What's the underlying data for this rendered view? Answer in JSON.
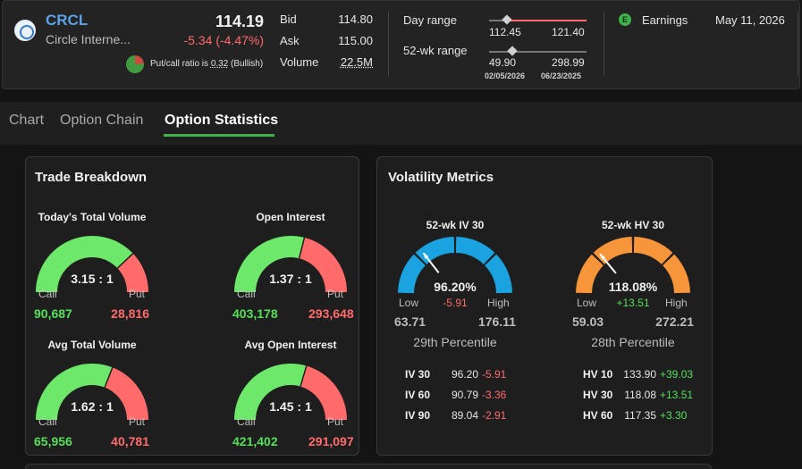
{
  "quote": {
    "symbol": "CRCL",
    "company": "Circle Interne...",
    "last": "114.19",
    "change": "-5.34 (-4.47%)",
    "putcall_prefix": "Put/call ratio is ",
    "putcall_value": "0.32",
    "putcall_suffix": " (Bullish)",
    "bid_label": "Bid",
    "bid": "114.80",
    "ask_label": "Ask",
    "ask": "115.00",
    "volume_label": "Volume",
    "volume": "22.5M",
    "day_range_label": "Day range",
    "day_low": "112.45",
    "day_high": "121.40",
    "wk52_label": "52-wk range",
    "wk52_low": "49.90",
    "wk52_high": "298.99",
    "wk52_low_date": "02/05/2026",
    "wk52_high_date": "06/23/2025",
    "earnings_icon": "E",
    "earnings_label": "Earnings",
    "earnings_date": "May 11, 2026"
  },
  "tabs": [
    "Chart",
    "Option Chain",
    "Option Statistics"
  ],
  "active_tab": "Option Statistics",
  "trade_breakdown": {
    "title": "Trade Breakdown",
    "call_label": "Call",
    "put_label": "Put",
    "gauges": [
      {
        "title": "Today's Total Volume",
        "ratio": "3.15 : 1",
        "call": "90,687",
        "put": "28,816",
        "call_fraction": 0.759
      },
      {
        "title": "Open Interest",
        "ratio": "1.37 : 1",
        "call": "403,178",
        "put": "293,648",
        "call_fraction": 0.579
      },
      {
        "title": "Avg Total Volume",
        "ratio": "1.62 : 1",
        "call": "65,956",
        "put": "40,781",
        "call_fraction": 0.618
      },
      {
        "title": "Avg Open Interest",
        "ratio": "1.45 : 1",
        "call": "421,402",
        "put": "291,097",
        "call_fraction": 0.591
      }
    ]
  },
  "volatility": {
    "title": "Volatility Metrics",
    "low_label": "Low",
    "high_label": "High",
    "iv": {
      "title": "52-wk IV 30",
      "value": "96.20%",
      "change": "-5.91",
      "low": "63.71",
      "high": "176.11",
      "percentile": "29th Percentile",
      "needle_fraction": 0.29,
      "color": "#1aa3e0",
      "rows": [
        {
          "k": "IV 30",
          "a": "96.20",
          "b": "-5.91"
        },
        {
          "k": "IV 60",
          "a": "90.79",
          "b": "-3.36"
        },
        {
          "k": "IV 90",
          "a": "89.04",
          "b": "-2.91"
        }
      ]
    },
    "hv": {
      "title": "52-wk HV 30",
      "value": "118.08%",
      "change": "+13.51",
      "low": "59.03",
      "high": "272.21",
      "percentile": "28th Percentile",
      "needle_fraction": 0.28,
      "color": "#f7953a",
      "rows": [
        {
          "k": "HV 10",
          "a": "133.90",
          "b": "+39.03"
        },
        {
          "k": "HV 30",
          "a": "118.08",
          "b": "+13.51"
        },
        {
          "k": "HV 60",
          "a": "117.35",
          "b": "+3.30"
        }
      ]
    }
  },
  "colors": {
    "call": "#6ee86a",
    "put": "#ff6b6b",
    "accent": "#3fb14a",
    "symbol": "#5aa3e8"
  }
}
